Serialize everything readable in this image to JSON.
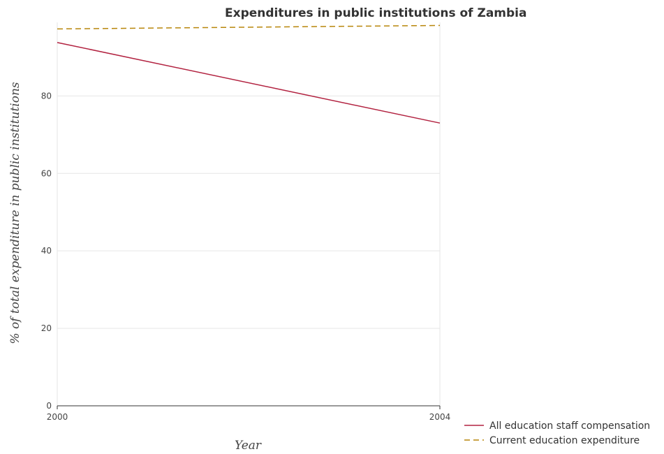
{
  "chart_data": {
    "type": "line",
    "title": "Expenditures in public institutions of Zambia",
    "xlabel": "Year",
    "ylabel": "% of total expenditure in public institutions",
    "categories": [
      "2000",
      "2004"
    ],
    "ylim": [
      0,
      99
    ],
    "yticks": [
      "0",
      "20",
      "40",
      "60",
      "80"
    ],
    "grid": true,
    "legend_position": "bottom-right",
    "series": [
      {
        "name": "All education staff compensation",
        "values": [
          93.8,
          73.0
        ],
        "color": "#b22240",
        "dash": "solid"
      },
      {
        "name": "Current education expenditure",
        "values": [
          97.3,
          98.2
        ],
        "color": "#b8860b",
        "dash": "dashed"
      }
    ]
  }
}
